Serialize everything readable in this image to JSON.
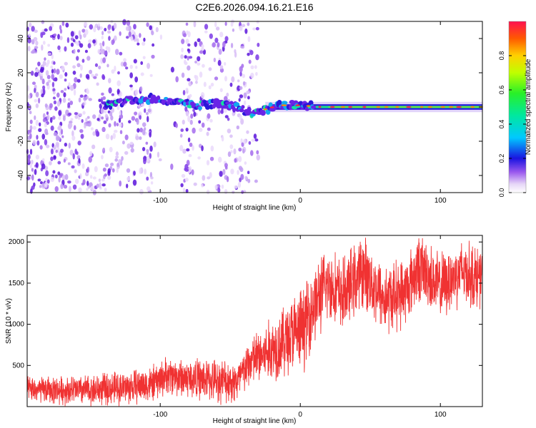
{
  "title": "C2E6.2026.094.16.21.E16",
  "chart_data": [
    {
      "type": "heatmap",
      "name": "spectrogram",
      "xlabel": "Height of straight line (km)",
      "ylabel": "Frequency (Hz)",
      "xlim": [
        -195,
        130
      ],
      "ylim": [
        -50,
        50
      ],
      "xticks": [
        -100,
        0,
        100
      ],
      "yticks": [
        -40,
        -20,
        0,
        20,
        40
      ],
      "noise_region_x": [
        -195,
        -30
      ],
      "noise_gap_x": [
        -105,
        -85
      ],
      "signal_ridge": [
        {
          "x": -140,
          "y": 1
        },
        {
          "x": -120,
          "y": 4
        },
        {
          "x": -105,
          "y": 5
        },
        {
          "x": -90,
          "y": 3
        },
        {
          "x": -75,
          "y": 1
        },
        {
          "x": -60,
          "y": 2
        },
        {
          "x": -45,
          "y": 0
        },
        {
          "x": -35,
          "y": -4
        },
        {
          "x": -28,
          "y": -2
        },
        {
          "x": -15,
          "y": 1
        },
        {
          "x": 0,
          "y": 1
        },
        {
          "x": 15,
          "y": 0
        },
        {
          "x": 50,
          "y": 0
        },
        {
          "x": 90,
          "y": 0
        },
        {
          "x": 130,
          "y": 0
        }
      ],
      "colorbar": {
        "label": "Normalized spectral amplitude",
        "range": [
          0,
          1
        ],
        "ticks": [
          "0.0",
          "0.2",
          "0.4",
          "0.6",
          "0.8"
        ]
      }
    },
    {
      "type": "line",
      "name": "snr",
      "xlabel": "Height of straight line (km)",
      "ylabel": "SNR (10 * v/v)",
      "xlim": [
        -195,
        130
      ],
      "ylim": [
        0,
        2080
      ],
      "xticks": [
        -100,
        0,
        100
      ],
      "yticks": [
        500,
        1000,
        1500,
        2000
      ],
      "color": "#f03232",
      "trend": [
        {
          "x": -195,
          "y": 200
        },
        {
          "x": -150,
          "y": 200
        },
        {
          "x": -120,
          "y": 240
        },
        {
          "x": -105,
          "y": 280
        },
        {
          "x": -95,
          "y": 380
        },
        {
          "x": -80,
          "y": 340
        },
        {
          "x": -60,
          "y": 320
        },
        {
          "x": -45,
          "y": 300
        },
        {
          "x": -35,
          "y": 560
        },
        {
          "x": -25,
          "y": 640
        },
        {
          "x": -15,
          "y": 760
        },
        {
          "x": -5,
          "y": 880
        },
        {
          "x": 0,
          "y": 900
        },
        {
          "x": 10,
          "y": 1250
        },
        {
          "x": 20,
          "y": 1500
        },
        {
          "x": 30,
          "y": 1350
        },
        {
          "x": 45,
          "y": 1650
        },
        {
          "x": 60,
          "y": 1300
        },
        {
          "x": 75,
          "y": 1400
        },
        {
          "x": 85,
          "y": 1700
        },
        {
          "x": 100,
          "y": 1450
        },
        {
          "x": 115,
          "y": 1650
        },
        {
          "x": 130,
          "y": 1550
        }
      ],
      "noise_amplitude": [
        {
          "x": -195,
          "y": 180
        },
        {
          "x": -100,
          "y": 260
        },
        {
          "x": -40,
          "y": 320
        },
        {
          "x": 0,
          "y": 600
        },
        {
          "x": 20,
          "y": 520
        },
        {
          "x": 130,
          "y": 450
        }
      ]
    }
  ]
}
